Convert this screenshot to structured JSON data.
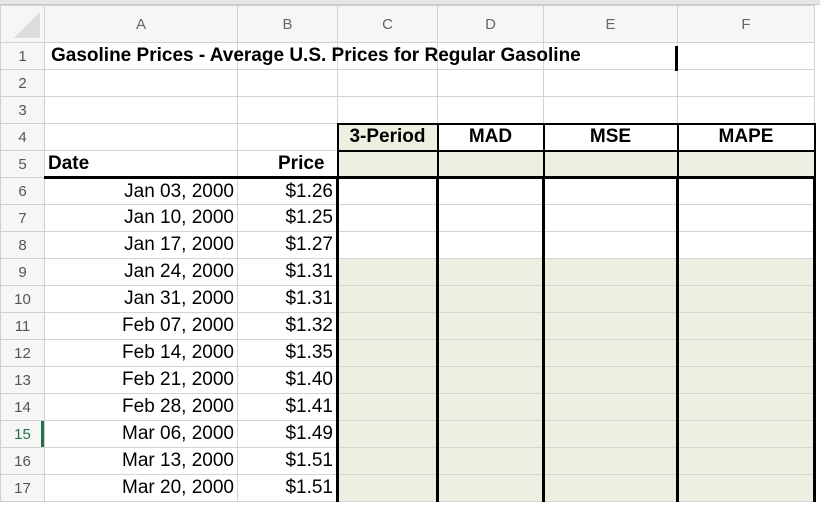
{
  "columns": [
    "A",
    "B",
    "C",
    "D",
    "E",
    "F"
  ],
  "title": "Gasoline Prices - Average U.S. Prices for Regular Gasoline",
  "headers": {
    "date": "Date",
    "price": "Price",
    "c4": "3-Period",
    "d4": "MAD",
    "e4": "MSE",
    "f4": "MAPE"
  },
  "selected_row": 15,
  "fill_color": "#edf0e0",
  "rows": [
    {
      "n": 6,
      "date": "Jan 03, 2000",
      "price": "$1.26"
    },
    {
      "n": 7,
      "date": "Jan 10, 2000",
      "price": "$1.25"
    },
    {
      "n": 8,
      "date": "Jan 17, 2000",
      "price": "$1.27"
    },
    {
      "n": 9,
      "date": "Jan 24, 2000",
      "price": "$1.31"
    },
    {
      "n": 10,
      "date": "Jan 31, 2000",
      "price": "$1.31"
    },
    {
      "n": 11,
      "date": "Feb 07, 2000",
      "price": "$1.32"
    },
    {
      "n": 12,
      "date": "Feb 14, 2000",
      "price": "$1.35"
    },
    {
      "n": 13,
      "date": "Feb 21, 2000",
      "price": "$1.40"
    },
    {
      "n": 14,
      "date": "Feb 28, 2000",
      "price": "$1.41"
    },
    {
      "n": 15,
      "date": "Mar 06, 2000",
      "price": "$1.49"
    },
    {
      "n": 16,
      "date": "Mar 13, 2000",
      "price": "$1.51"
    },
    {
      "n": 17,
      "date": "Mar 20, 2000",
      "price": "$1.51"
    }
  ]
}
